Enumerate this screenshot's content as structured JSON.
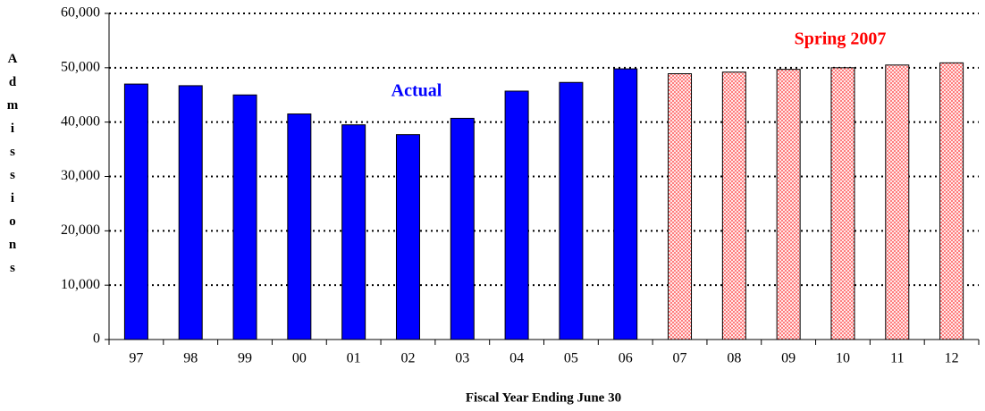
{
  "chart_data": {
    "type": "bar",
    "x_label": "Fiscal Year Ending June 30",
    "y_label": "Admissions",
    "categories": [
      "97",
      "98",
      "99",
      "00",
      "01",
      "02",
      "03",
      "04",
      "05",
      "06",
      "07",
      "08",
      "09",
      "10",
      "11",
      "12"
    ],
    "series": [
      {
        "name": "Actual",
        "color": "#0000ff",
        "values": [
          47000,
          46700,
          45000,
          41500,
          39500,
          37700,
          40700,
          45700,
          47300,
          49800,
          null,
          null,
          null,
          null,
          null,
          null
        ]
      },
      {
        "name": "Spring 2007",
        "color": "#ff0000",
        "values": [
          null,
          null,
          null,
          null,
          null,
          null,
          null,
          null,
          null,
          null,
          48900,
          49200,
          49700,
          50000,
          50500,
          50900
        ]
      }
    ],
    "ylim": [
      0,
      60000
    ],
    "yticks": [
      0,
      {
        "value": 10000,
        "label": "10,000"
      },
      {
        "value": 20000,
        "label": "20,000"
      },
      {
        "value": 30000,
        "label": "30,000"
      },
      {
        "value": 40000,
        "label": "40,000"
      },
      {
        "value": 50000,
        "label": "50,000"
      },
      {
        "value": 60000,
        "label": "60,000"
      }
    ],
    "grid": true
  }
}
